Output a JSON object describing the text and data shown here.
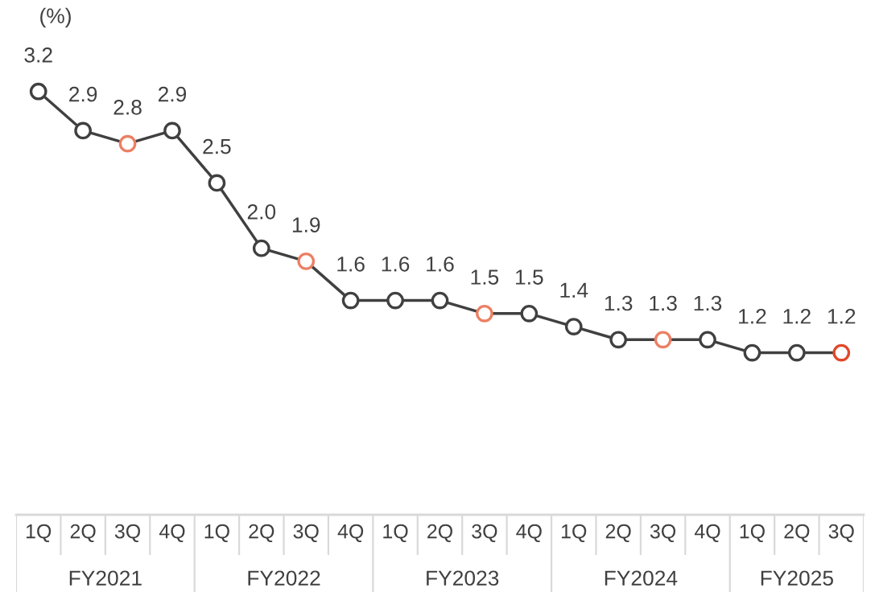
{
  "chart_data": {
    "type": "line",
    "ylabel": "(%)",
    "categories": [
      "1Q",
      "2Q",
      "3Q",
      "4Q",
      "1Q",
      "2Q",
      "3Q",
      "4Q",
      "1Q",
      "2Q",
      "3Q",
      "4Q",
      "1Q",
      "2Q",
      "3Q",
      "4Q",
      "1Q",
      "2Q",
      "3Q"
    ],
    "annotations": [
      "FY2021",
      "FY2022",
      "FY2023",
      "FY2024",
      "FY2025"
    ],
    "values": [
      3.2,
      2.9,
      2.8,
      2.9,
      2.5,
      2.0,
      1.9,
      1.6,
      1.6,
      1.6,
      1.5,
      1.5,
      1.4,
      1.3,
      1.3,
      1.3,
      1.2,
      1.2,
      1.2
    ],
    "value_labels": [
      "3.2",
      "2.9",
      "2.8",
      "2.9",
      "2.5",
      "2.0",
      "1.9",
      "1.6",
      "1.6",
      "1.6",
      "1.5",
      "1.5",
      "1.4",
      "1.3",
      "1.3",
      "1.3",
      "1.2",
      "1.2",
      "1.2"
    ],
    "color": "#404040",
    "colors": [
      "#404040",
      "#404040",
      "#ec7f63",
      "#404040",
      "#404040",
      "#404040",
      "#ec7f63",
      "#404040",
      "#404040",
      "#404040",
      "#ec7f63",
      "#404040",
      "#404040",
      "#404040",
      "#ec7f63",
      "#404040",
      "#404040",
      "#404040",
      "#e0482a"
    ],
    "marker": "circle",
    "line_style": "solid",
    "tick_labels": "x",
    "grid": false,
    "legend": false
  }
}
